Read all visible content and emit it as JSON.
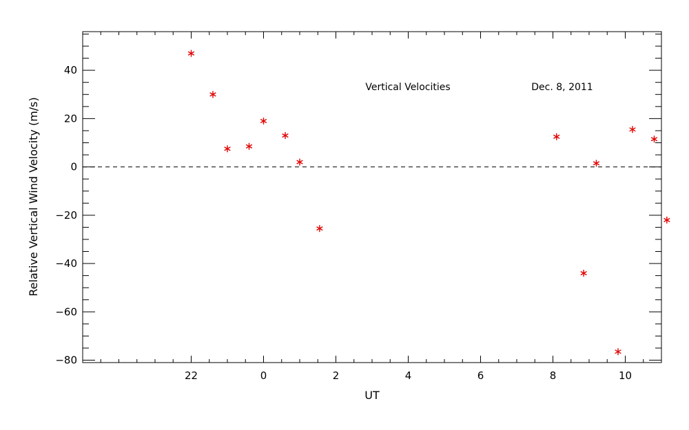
{
  "chart_data": {
    "type": "scatter",
    "title": "",
    "xlabel": "UT",
    "ylabel": "Relative Vertical Wind Velocity (m/s)",
    "annotations": [
      "Vertical Velocities",
      "Dec. 8, 2011"
    ],
    "x_unwrapped_hours": true,
    "x_tick_labels": [
      "22",
      "0",
      "2",
      "4",
      "6",
      "8",
      "10"
    ],
    "x_tick_positions_hours": [
      22,
      24,
      26,
      28,
      30,
      32,
      34
    ],
    "xlim_hours": [
      19.0,
      35.0
    ],
    "ylim": [
      -81,
      56
    ],
    "y_ticks": [
      -80,
      -60,
      -40,
      -20,
      0,
      20,
      40
    ],
    "grid": false,
    "reference_line": {
      "y": 0,
      "style": "dashed"
    },
    "marker": "asterisk",
    "marker_color": "#e00000",
    "series": [
      {
        "points": [
          {
            "x": 22.0,
            "y": 47
          },
          {
            "x": 22.6,
            "y": 30
          },
          {
            "x": 23.0,
            "y": 7.5
          },
          {
            "x": 23.6,
            "y": 8.5
          },
          {
            "x": 24.0,
            "y": 19
          },
          {
            "x": 24.6,
            "y": 13
          },
          {
            "x": 25.0,
            "y": 2
          },
          {
            "x": 25.55,
            "y": -25.5
          },
          {
            "x": 32.1,
            "y": 12.5
          },
          {
            "x": 32.85,
            "y": -44
          },
          {
            "x": 33.2,
            "y": 1.5
          },
          {
            "x": 33.8,
            "y": -76.5
          },
          {
            "x": 34.2,
            "y": 15.5
          },
          {
            "x": 34.8,
            "y": 11.5
          },
          {
            "x": 35.15,
            "y": -22
          }
        ]
      }
    ]
  }
}
